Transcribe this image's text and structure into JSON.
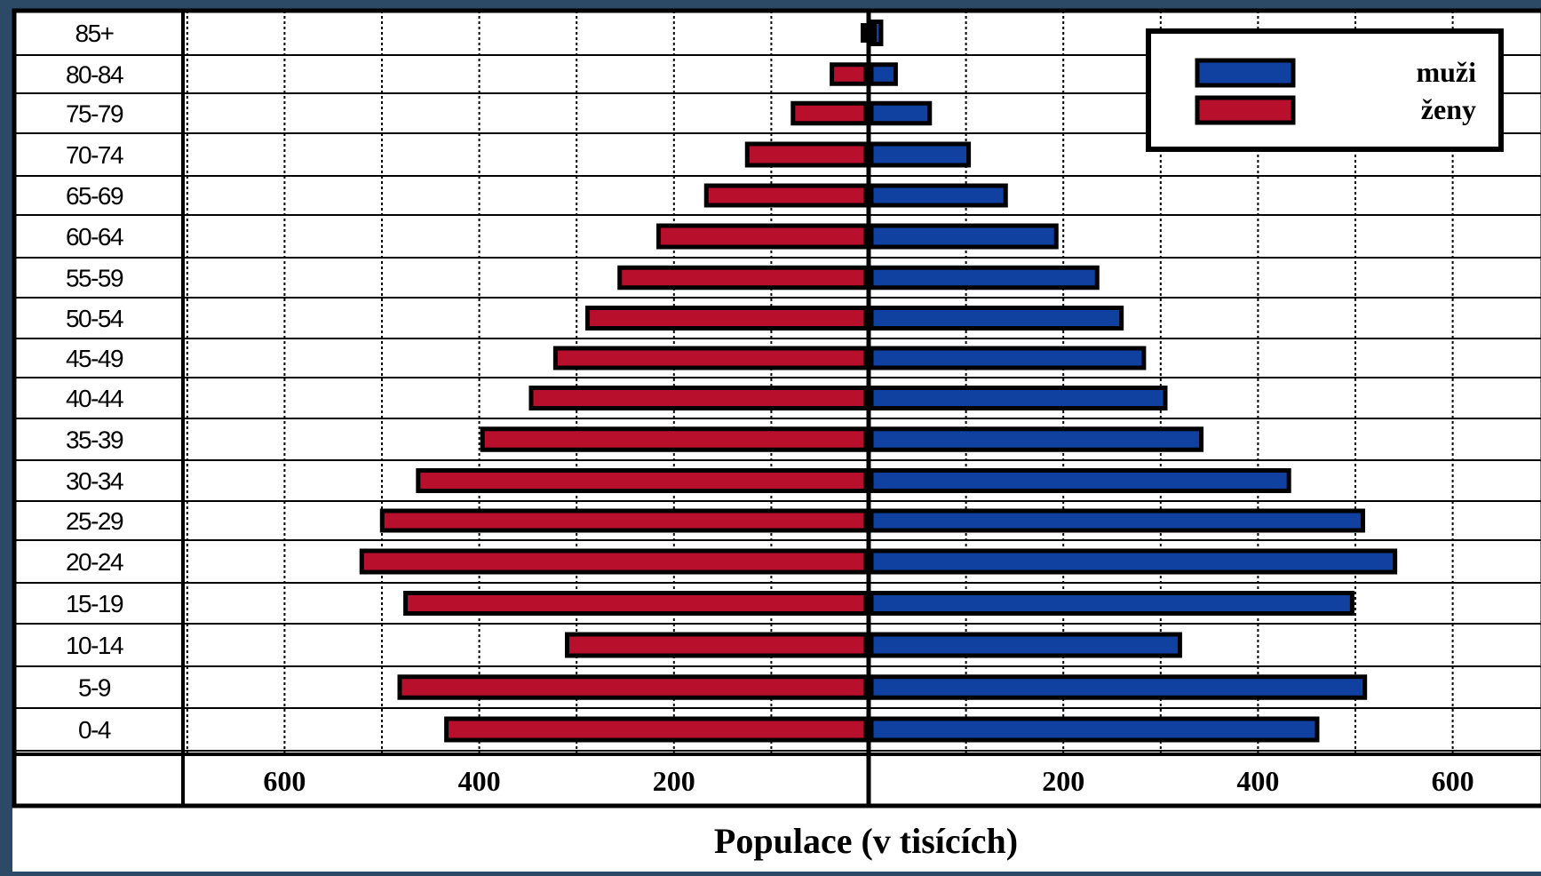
{
  "chart_data": {
    "type": "bar",
    "subtype": "population-pyramid",
    "title": "",
    "xlabel": "Populace (v tisících)",
    "ylabel": "",
    "categories": [
      "85+",
      "80-84",
      "75-79",
      "70-74",
      "65-69",
      "60-64",
      "55-59",
      "50-54",
      "45-49",
      "40-44",
      "35-39",
      "30-34",
      "25-29",
      "20-24",
      "15-19",
      "10-14",
      "5-9",
      "0-4"
    ],
    "series": [
      {
        "name": "muži",
        "side": "right",
        "color": "#1040a0",
        "values": [
          10,
          25,
          60,
          100,
          138,
          190,
          232,
          257,
          280,
          302,
          339,
          429,
          505,
          538,
          494,
          317,
          507,
          458
        ]
      },
      {
        "name": "ženy",
        "side": "left",
        "color": "#b8102c",
        "values": [
          0,
          35,
          75,
          122,
          164,
          213,
          253,
          286,
          319,
          344,
          394,
          460,
          497,
          518,
          473,
          307,
          479,
          431
        ]
      }
    ],
    "xlim": [
      -700,
      700
    ],
    "xticks_left": [
      "600",
      "400",
      "200"
    ],
    "xticks_right": [
      "200",
      "400",
      "600"
    ],
    "grid": "vertical dotted every 100",
    "legend": {
      "position": "top-right",
      "entries": [
        "muži",
        "ženy"
      ]
    }
  }
}
